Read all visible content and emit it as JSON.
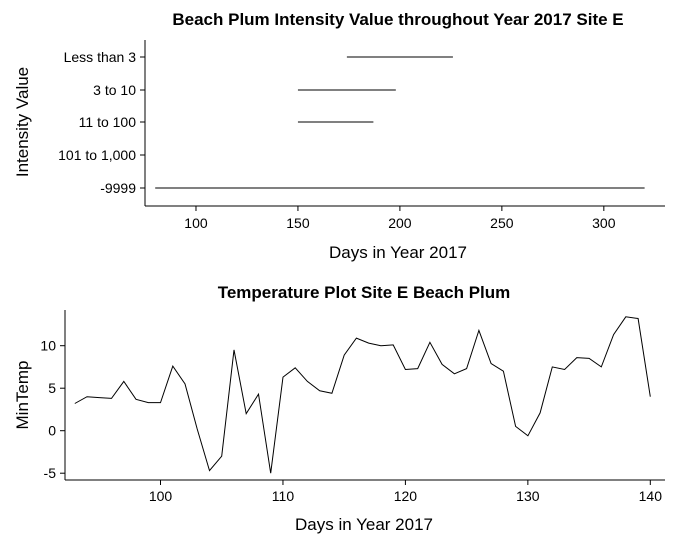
{
  "chart_data": [
    {
      "type": "range-segments",
      "title": "Beach Plum Intensity Value throughout Year 2017 Site E",
      "xlabel": "Days in Year 2017",
      "ylabel": "Intensity Value",
      "xlim": [
        75,
        330
      ],
      "x_ticks": [
        100,
        150,
        200,
        250,
        300
      ],
      "categories": [
        "Less than 3",
        "3 to 10",
        "11 to 100",
        "101 to 1,000",
        "-9999"
      ],
      "segments": [
        {
          "category": "Less than 3",
          "start": 174,
          "end": 226
        },
        {
          "category": "3 to 10",
          "start": 150,
          "end": 198
        },
        {
          "category": "11 to 100",
          "start": 150,
          "end": 187
        },
        {
          "category": "-9999",
          "start": 80,
          "end": 320
        }
      ],
      "grid": false
    },
    {
      "type": "line",
      "title": "Temperature Plot Site E Beach Plum",
      "xlabel": "Days in Year 2017",
      "ylabel": "MinTemp",
      "xlim": [
        92.2,
        141.2
      ],
      "ylim": [
        -5.8,
        14.2
      ],
      "x_ticks": [
        100,
        110,
        120,
        130,
        140
      ],
      "y_ticks": [
        -5,
        0,
        5,
        10
      ],
      "x": [
        93,
        94,
        95,
        96,
        97,
        98,
        99,
        100,
        101,
        102,
        103,
        104,
        105,
        106,
        107,
        108,
        109,
        110,
        111,
        112,
        113,
        114,
        115,
        116,
        117,
        118,
        119,
        120,
        121,
        122,
        123,
        124,
        125,
        126,
        127,
        128,
        129,
        130,
        131,
        132,
        133,
        134,
        135,
        136,
        137,
        138,
        139,
        140
      ],
      "values": [
        3.2,
        4.0,
        3.9,
        3.8,
        5.8,
        3.7,
        3.3,
        3.3,
        7.6,
        5.5,
        0.2,
        -4.7,
        -3.0,
        9.5,
        2.0,
        4.3,
        -5.0,
        6.3,
        7.4,
        5.8,
        4.7,
        4.4,
        8.9,
        10.9,
        10.3,
        10.0,
        10.1,
        7.2,
        7.3,
        10.4,
        7.8,
        6.7,
        7.3,
        11.8,
        7.9,
        7.0,
        0.5,
        -0.6,
        2.1,
        7.5,
        7.2,
        8.6,
        8.5,
        7.5,
        11.3,
        13.4,
        13.2,
        4.0
      ],
      "grid": false
    }
  ]
}
